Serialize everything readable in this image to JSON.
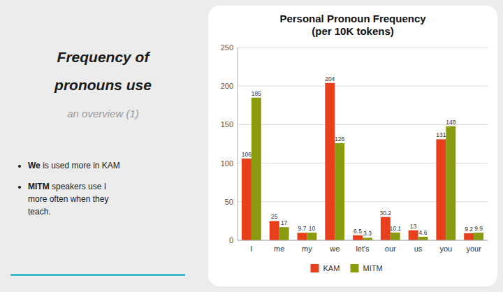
{
  "heading": [
    "Frequency of",
    "pronouns use"
  ],
  "subheading": "an overview (1)",
  "bullets": [
    {
      "bold": "We",
      "text": " is used more in KAM"
    },
    {
      "bold": "MITM",
      "text": " speakers use I\nmore often when they\nteach."
    }
  ],
  "accent_color": "#3BBCCC",
  "chart_data": {
    "type": "bar",
    "title": "Personal Pronoun Frequency\n(per 10K tokens)",
    "categories": [
      "I",
      "me",
      "my",
      "we",
      "let's",
      "our",
      "us",
      "you",
      "your"
    ],
    "series": [
      {
        "name": "KAM",
        "color": "#E8401C",
        "values": [
          106,
          25,
          9.7,
          204,
          6.5,
          30.2,
          13,
          131,
          9.2
        ]
      },
      {
        "name": "MITM",
        "color": "#8B9B10",
        "values": [
          185,
          17,
          10,
          126,
          3.3,
          10.1,
          4.6,
          148,
          9.9
        ]
      }
    ],
    "ylim": [
      0,
      250
    ],
    "yticks": [
      0,
      50,
      100,
      150,
      200,
      250
    ],
    "grid": true,
    "legend": "bottom",
    "data_labels": true
  }
}
